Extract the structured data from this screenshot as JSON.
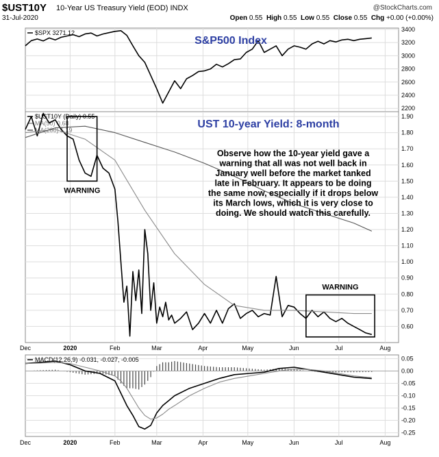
{
  "header": {
    "symbol": "$UST10Y",
    "description": "10-Year US Treasury Yield (EOD)  INDX",
    "date": "31-Jul-2020",
    "watermark": "@StockCharts.com",
    "open_label": "Open",
    "open": "0.55",
    "high_label": "High",
    "high": "0.55",
    "low_label": "Low",
    "low": "0.55",
    "close_label": "Close",
    "close": "0.55",
    "chg_label": "Chg",
    "chg": "+0.00 (+0.00%)"
  },
  "chart_data": [
    {
      "type": "line",
      "title": "S&P500 Index",
      "legend": [
        "$SPX 3271.12"
      ],
      "ylim": [
        2150,
        3420
      ],
      "yticks": [
        2200,
        2400,
        2600,
        2800,
        3000,
        3200,
        3400
      ],
      "series": [
        {
          "name": "$SPX",
          "x": [
            0,
            4,
            8,
            12,
            16,
            20,
            24,
            28,
            32,
            36,
            40,
            44,
            48,
            52,
            56,
            60,
            64,
            68,
            72,
            76,
            80,
            84,
            88,
            92,
            96,
            100,
            104,
            108,
            112,
            116,
            120,
            124,
            128,
            132,
            136,
            140,
            144,
            148,
            152,
            156,
            160,
            164,
            168,
            172,
            176,
            180,
            184,
            188,
            192,
            196,
            200,
            204,
            208,
            212,
            216,
            220,
            224,
            228,
            232
          ],
          "values": [
            3150,
            3230,
            3255,
            3225,
            3270,
            3240,
            3280,
            3300,
            3320,
            3290,
            3330,
            3345,
            3300,
            3330,
            3350,
            3370,
            3380,
            3310,
            3150,
            3000,
            2900,
            2700,
            2500,
            2280,
            2450,
            2620,
            2500,
            2650,
            2700,
            2760,
            2770,
            2800,
            2870,
            2830,
            2880,
            2940,
            2950,
            3050,
            3100,
            3230,
            3050,
            3100,
            3150,
            3000,
            3100,
            3150,
            3130,
            3100,
            3180,
            3220,
            3180,
            3230,
            3210,
            3240,
            3250,
            3230,
            3250,
            3260,
            3270
          ]
        }
      ]
    },
    {
      "type": "line",
      "title": "UST 10-year Yield: 8-month",
      "legend": [
        "$UST10Y (Daily) 0.55",
        "MA(50) 0.68",
        "MA(200) 1.19"
      ],
      "ylim": [
        0.5,
        1.93
      ],
      "yticks": [
        0.6,
        0.7,
        0.8,
        0.9,
        1.0,
        1.1,
        1.2,
        1.3,
        1.4,
        1.5,
        1.6,
        1.7,
        1.8,
        1.9
      ],
      "series": [
        {
          "name": "$UST10Y",
          "x": [
            0,
            4,
            8,
            12,
            16,
            20,
            24,
            28,
            32,
            36,
            40,
            44,
            48,
            52,
            56,
            60,
            62,
            64,
            66,
            68,
            70,
            72,
            74,
            76,
            78,
            80,
            82,
            84,
            86,
            88,
            90,
            92,
            94,
            96,
            98,
            100,
            104,
            108,
            112,
            116,
            120,
            124,
            128,
            132,
            136,
            140,
            144,
            148,
            152,
            156,
            160,
            164,
            168,
            172,
            176,
            180,
            184,
            188,
            192,
            196,
            200,
            204,
            208,
            212,
            216,
            220,
            224,
            228,
            232
          ],
          "values": [
            1.82,
            1.9,
            1.78,
            1.92,
            1.86,
            1.88,
            1.82,
            1.78,
            1.76,
            1.63,
            1.55,
            1.53,
            1.66,
            1.58,
            1.55,
            1.45,
            1.25,
            1.0,
            0.75,
            0.85,
            0.54,
            0.94,
            0.76,
            0.95,
            0.68,
            1.2,
            1.05,
            0.7,
            0.87,
            0.62,
            0.72,
            0.66,
            0.75,
            0.64,
            0.67,
            0.62,
            0.65,
            0.69,
            0.58,
            0.62,
            0.68,
            0.62,
            0.7,
            0.62,
            0.71,
            0.74,
            0.65,
            0.68,
            0.7,
            0.66,
            0.68,
            0.67,
            0.91,
            0.66,
            0.73,
            0.72,
            0.68,
            0.65,
            0.7,
            0.66,
            0.69,
            0.65,
            0.63,
            0.65,
            0.62,
            0.6,
            0.58,
            0.56,
            0.55
          ]
        },
        {
          "name": "MA(50)",
          "x": [
            0,
            20,
            40,
            60,
            80,
            100,
            120,
            140,
            160,
            180,
            200,
            220,
            232
          ],
          "values": [
            1.8,
            1.82,
            1.76,
            1.63,
            1.32,
            1.05,
            0.86,
            0.73,
            0.7,
            0.7,
            0.69,
            0.68,
            0.68
          ]
        },
        {
          "name": "MA(200)",
          "x": [
            0,
            20,
            40,
            60,
            80,
            100,
            120,
            140,
            160,
            180,
            200,
            220,
            232
          ],
          "values": [
            1.77,
            1.83,
            1.84,
            1.8,
            1.74,
            1.68,
            1.61,
            1.53,
            1.44,
            1.36,
            1.3,
            1.24,
            1.19
          ]
        }
      ]
    },
    {
      "type": "line",
      "title": "",
      "legend": [
        "MACD(12,26,9) -0.031, -0.027, -0.005"
      ],
      "ylim": [
        -0.265,
        0.065
      ],
      "yticks": [
        0.05,
        0.0,
        -0.05,
        -0.1,
        -0.15,
        -0.2,
        -0.25
      ],
      "series": [
        {
          "name": "MACD",
          "x": [
            0,
            10,
            20,
            30,
            40,
            50,
            60,
            64,
            68,
            72,
            76,
            80,
            84,
            88,
            92,
            96,
            100,
            110,
            120,
            130,
            140,
            150,
            160,
            170,
            180,
            190,
            200,
            210,
            220,
            232
          ],
          "values": [
            0.03,
            0.035,
            0.04,
            0.025,
            0.0,
            -0.01,
            -0.04,
            -0.09,
            -0.14,
            -0.18,
            -0.225,
            -0.235,
            -0.22,
            -0.17,
            -0.14,
            -0.12,
            -0.1,
            -0.07,
            -0.05,
            -0.03,
            -0.015,
            -0.01,
            -0.005,
            0.01,
            0.015,
            0.005,
            -0.005,
            -0.015,
            -0.025,
            -0.031
          ]
        },
        {
          "name": "Signal",
          "x": [
            0,
            10,
            20,
            30,
            40,
            50,
            60,
            64,
            68,
            72,
            76,
            80,
            84,
            88,
            92,
            96,
            100,
            110,
            120,
            130,
            140,
            150,
            160,
            170,
            180,
            190,
            200,
            210,
            220,
            232
          ],
          "values": [
            0.03,
            0.032,
            0.035,
            0.03,
            0.015,
            0.0,
            -0.02,
            -0.04,
            -0.07,
            -0.11,
            -0.15,
            -0.18,
            -0.195,
            -0.19,
            -0.175,
            -0.155,
            -0.14,
            -0.1,
            -0.07,
            -0.045,
            -0.03,
            -0.02,
            -0.01,
            0.0,
            0.008,
            0.006,
            0.0,
            -0.01,
            -0.02,
            -0.027
          ]
        }
      ]
    }
  ],
  "x_axis": {
    "months": [
      {
        "label": "Dec",
        "x": 0,
        "bold": false
      },
      {
        "label": "2020",
        "x": 30,
        "bold": true
      },
      {
        "label": "Feb",
        "x": 60,
        "bold": false
      },
      {
        "label": "Mar",
        "x": 88,
        "bold": false
      },
      {
        "label": "Apr",
        "x": 119,
        "bold": false
      },
      {
        "label": "May",
        "x": 149,
        "bold": false
      },
      {
        "label": "Jun",
        "x": 180,
        "bold": false
      },
      {
        "label": "Jul",
        "x": 210,
        "bold": false
      },
      {
        "label": "Aug",
        "x": 241,
        "bold": false
      }
    ]
  },
  "annotations": {
    "spx_title": "S&P500 Index",
    "yield_title": "UST 10-year Yield: 8-month",
    "comment_lines": [
      "Observe how the 10-year yield gave a",
      "warning that all was not well back in",
      "January well before the market tanked",
      "late in February. It appears to be doing",
      "the same now, especially if it drops below",
      "its March lows, which it is very close to",
      "doing. We should watch this carefully."
    ],
    "warning_left": "WARNING",
    "warning_right": "WARNING"
  },
  "colors": {
    "price": "#000000",
    "ma50": "#8a8a8a",
    "ma200": "#555555",
    "title": "#2d3fa3",
    "histogram": "#444444"
  }
}
